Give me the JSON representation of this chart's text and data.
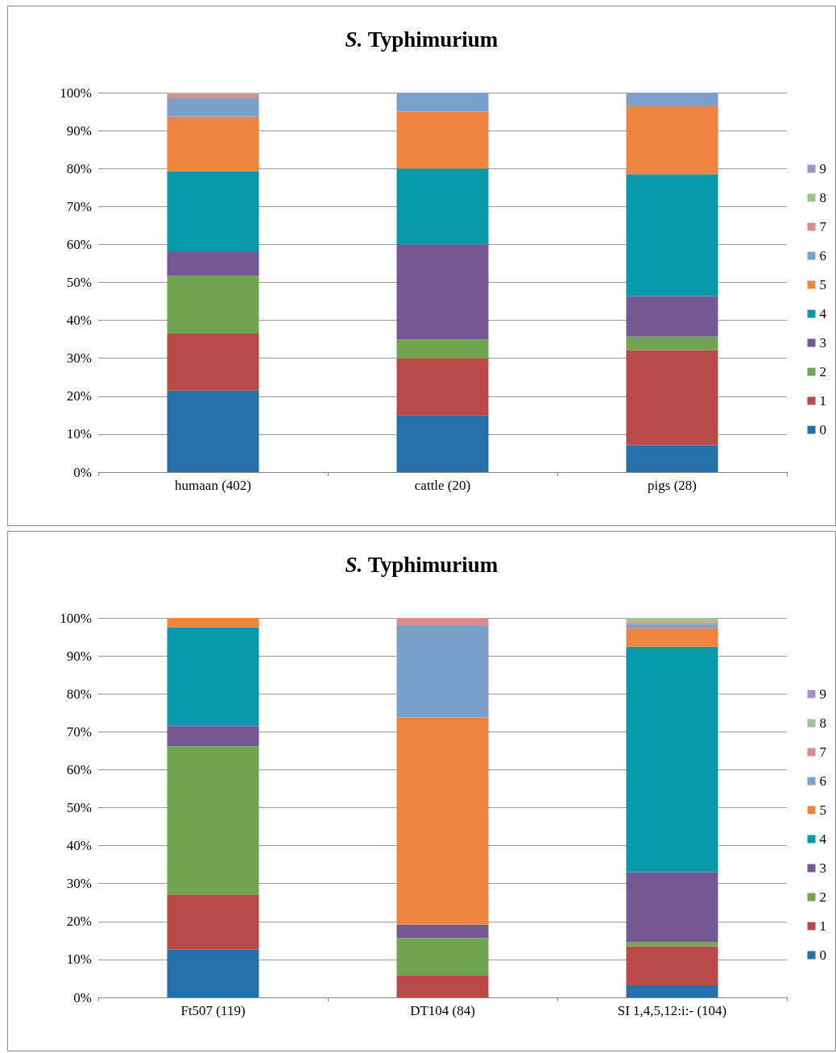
{
  "chart_data": [
    {
      "type": "bar",
      "title": "S. Typhimurium",
      "stacked": true,
      "categories": [
        "humaan (402)",
        "cattle (20)",
        "pigs (28)"
      ],
      "ylim": [
        0,
        100
      ],
      "yticks": [
        {
          "value": 0,
          "label": "0%"
        },
        {
          "value": 10,
          "label": "10%"
        },
        {
          "value": 20,
          "label": "20%"
        },
        {
          "value": 30,
          "label": "30%"
        },
        {
          "value": 40,
          "label": "40%"
        },
        {
          "value": 50,
          "label": "50%"
        },
        {
          "value": 60,
          "label": "60%"
        },
        {
          "value": 70,
          "label": "70%"
        },
        {
          "value": 80,
          "label": "80%"
        },
        {
          "value": 90,
          "label": "90%"
        },
        {
          "value": 100,
          "label": "100%"
        }
      ],
      "grid": "y",
      "legend": "right",
      "series": [
        {
          "name": "0",
          "color": "#2570a8",
          "values": [
            21.5,
            15,
            7.1
          ]
        },
        {
          "name": "1",
          "color": "#b94a48",
          "values": [
            15.0,
            15,
            25
          ]
        },
        {
          "name": "2",
          "color": "#70a54f",
          "values": [
            15.2,
            5,
            3.6
          ]
        },
        {
          "name": "3",
          "color": "#745893",
          "values": [
            6.5,
            25,
            10.7
          ]
        },
        {
          "name": "4",
          "color": "#0898ac",
          "values": [
            21.1,
            20,
            32.1
          ]
        },
        {
          "name": "5",
          "color": "#ed8440",
          "values": [
            14.4,
            15,
            17.9
          ]
        },
        {
          "name": "6",
          "color": "#7aa0cb",
          "values": [
            4.8,
            5,
            3.6
          ]
        },
        {
          "name": "7",
          "color": "#d98c8c",
          "values": [
            1.1,
            0,
            0
          ]
        },
        {
          "name": "8",
          "color": "#9dc58f",
          "values": [
            0.4,
            0,
            0
          ]
        },
        {
          "name": "9",
          "color": "#a493c0",
          "values": [
            0,
            0,
            0
          ]
        }
      ]
    },
    {
      "type": "bar",
      "title": "S. Typhimurium",
      "stacked": true,
      "categories": [
        "Ft507 (119)",
        "DT104 (84)",
        "SI 1,4,5,12:i:- (104)"
      ],
      "ylim": [
        0,
        100
      ],
      "yticks": [
        {
          "value": 0,
          "label": "0%"
        },
        {
          "value": 10,
          "label": "10%"
        },
        {
          "value": 20,
          "label": "20%"
        },
        {
          "value": 30,
          "label": "30%"
        },
        {
          "value": 40,
          "label": "40%"
        },
        {
          "value": 50,
          "label": "50%"
        },
        {
          "value": 60,
          "label": "60%"
        },
        {
          "value": 70,
          "label": "70%"
        },
        {
          "value": 80,
          "label": "80%"
        },
        {
          "value": 90,
          "label": "90%"
        },
        {
          "value": 100,
          "label": "100%"
        }
      ],
      "grid": "y",
      "legend": "right",
      "series": [
        {
          "name": "0",
          "color": "#2570a8",
          "values": [
            12.7,
            0,
            3.2
          ]
        },
        {
          "name": "1",
          "color": "#b94a48",
          "values": [
            14.4,
            5.9,
            10.3
          ]
        },
        {
          "name": "2",
          "color": "#70a54f",
          "values": [
            39.1,
            9.7,
            1.1
          ]
        },
        {
          "name": "3",
          "color": "#745893",
          "values": [
            5.3,
            3.6,
            18.4
          ]
        },
        {
          "name": "4",
          "color": "#0898ac",
          "values": [
            26.0,
            0,
            59.4
          ]
        },
        {
          "name": "5",
          "color": "#ed8440",
          "values": [
            2.5,
            54.6,
            4.9
          ]
        },
        {
          "name": "6",
          "color": "#7aa0cb",
          "values": [
            0,
            24.1,
            1.1
          ]
        },
        {
          "name": "7",
          "color": "#d98c8c",
          "values": [
            0,
            2.1,
            0.5
          ]
        },
        {
          "name": "8",
          "color": "#9dc58f",
          "values": [
            0,
            0,
            1.1
          ]
        },
        {
          "name": "9",
          "color": "#a493c0",
          "values": [
            0,
            0,
            0
          ]
        }
      ]
    }
  ]
}
